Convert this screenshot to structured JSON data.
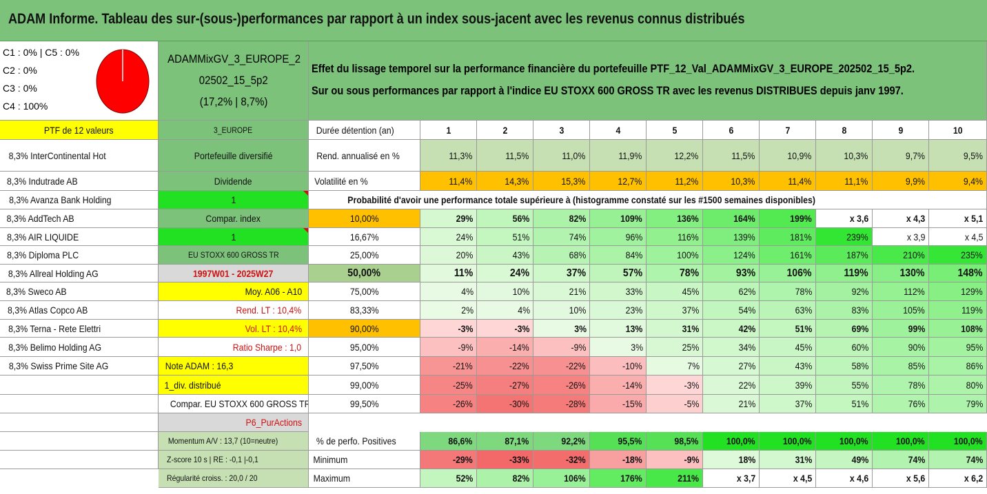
{
  "title": "ADAM Informe. Tableau des sur-(sous-)performances par rapport à un index sous-jacent avec les revenus connus distribués",
  "composition": {
    "line1": "C1 : 0% | C5 : 0%",
    "line2": "C2 : 0%",
    "line3": "C3 : 0%",
    "line4": "C4 : 100%"
  },
  "pie_color": "#ff0000",
  "portfolio": {
    "name_l1": "ADAMMixGV_3_EUROPE_2",
    "name_l2": "02502_15_5p2",
    "name_l3": "(17,2% | 8,7%)"
  },
  "description": {
    "line1": "Effet du lissage temporel sur la performance financière du portefeuille PTF_12_Val_ADAMMixGV_3_EUROPE_202502_15_5p2.",
    "line2": "Sur ou sous performances par rapport à l'indice EU STOXX 600 GROSS TR avec les revenus DISTRIBUES depuis janv 1997."
  },
  "ptf_label": "PTF de 12 valeurs",
  "holdings": [
    "8,3% InterContinental Hot",
    "8,3% Indutrade AB",
    "8,3% Avanza Bank Holding",
    "8,3% AddTech AB",
    "8,3% AIR LIQUIDE",
    "8,3% Diploma PLC",
    "8,3% Allreal Holding AG",
    "8,3% Sweco AB",
    "8,3% Atlas Copco AB",
    "8,3% Terna - Rete Elettri",
    "8,3% Belimo Holding AG",
    "8,3% Swiss Prime Site AG"
  ],
  "col2": {
    "zone": "3_EUROPE",
    "type": "Portefeuille diversifié",
    "dividend_label": "Dividende",
    "dividend_value": "1",
    "compar_label": "Compar. index",
    "compar_value": "1",
    "index_name": "EU STOXX 600 GROSS TR",
    "period": "1997W01 - 2025W27",
    "moy": "Moy. A06 - A10",
    "rend_lt": "Rend. LT : 10,4%",
    "vol_lt": "Vol. LT : 10,4%",
    "sharpe": "Ratio Sharpe : 1,0",
    "note": "Note ADAM : 16,3",
    "div": "1_div. distribué",
    "compar_full": "Compar. EU STOXX 600 GROSS TR",
    "p6": "P6_PurActions",
    "momentum": "Momentum A/V : 13,7 (10=neutre)",
    "zscore": "Z-score 10 s | RE : -0,1 |-0,1",
    "regularite": "Régularité croiss. : 20,0 / 20"
  },
  "duration": {
    "label": "Durée détention (an)",
    "years": [
      "1",
      "2",
      "3",
      "4",
      "5",
      "6",
      "7",
      "8",
      "9",
      "10"
    ]
  },
  "rend": {
    "label": "Rend. annualisé en %",
    "values": [
      "11,3%",
      "11,5%",
      "11,0%",
      "11,9%",
      "12,2%",
      "11,5%",
      "10,9%",
      "10,3%",
      "9,7%",
      "9,5%"
    ]
  },
  "vol": {
    "label": "Volatilité en %",
    "values": [
      "11,4%",
      "14,3%",
      "15,3%",
      "12,7%",
      "11,2%",
      "10,3%",
      "11,4%",
      "11,1%",
      "9,9%",
      "9,4%"
    ]
  },
  "prob_header": "Probabilité d'avoir une performance totale supérieure à (histogramme constaté sur les #1500 semaines disponibles)",
  "prob_rows": [
    {
      "p": "10,00%",
      "v": [
        "29%",
        "56%",
        "82%",
        "109%",
        "136%",
        "164%",
        "199%",
        "x 3,6",
        "x 4,3",
        "x 5,1"
      ]
    },
    {
      "p": "16,67%",
      "v": [
        "24%",
        "51%",
        "74%",
        "96%",
        "116%",
        "139%",
        "181%",
        "239%",
        "x 3,9",
        "x 4,5"
      ]
    },
    {
      "p": "25,00%",
      "v": [
        "20%",
        "43%",
        "68%",
        "84%",
        "100%",
        "124%",
        "161%",
        "187%",
        "210%",
        "235%"
      ]
    },
    {
      "p": "50,00%",
      "v": [
        "11%",
        "24%",
        "37%",
        "57%",
        "78%",
        "93%",
        "106%",
        "119%",
        "130%",
        "148%"
      ]
    },
    {
      "p": "75,00%",
      "v": [
        "4%",
        "10%",
        "21%",
        "33%",
        "45%",
        "62%",
        "78%",
        "92%",
        "112%",
        "129%"
      ]
    },
    {
      "p": "83,33%",
      "v": [
        "2%",
        "4%",
        "10%",
        "23%",
        "37%",
        "54%",
        "63%",
        "83%",
        "105%",
        "119%"
      ]
    },
    {
      "p": "90,00%",
      "v": [
        "-3%",
        "-3%",
        "3%",
        "13%",
        "31%",
        "42%",
        "51%",
        "69%",
        "99%",
        "108%"
      ]
    },
    {
      "p": "95,00%",
      "v": [
        "-9%",
        "-14%",
        "-9%",
        "3%",
        "25%",
        "34%",
        "45%",
        "60%",
        "90%",
        "95%"
      ]
    },
    {
      "p": "97,50%",
      "v": [
        "-21%",
        "-22%",
        "-22%",
        "-10%",
        "7%",
        "27%",
        "43%",
        "58%",
        "85%",
        "86%"
      ]
    },
    {
      "p": "99,00%",
      "v": [
        "-25%",
        "-27%",
        "-26%",
        "-14%",
        "-3%",
        "22%",
        "39%",
        "55%",
        "78%",
        "80%"
      ]
    },
    {
      "p": "99,50%",
      "v": [
        "-26%",
        "-30%",
        "-28%",
        "-15%",
        "-5%",
        "21%",
        "37%",
        "51%",
        "76%",
        "79%"
      ]
    }
  ],
  "positives": {
    "label": "% de perfo. Positives",
    "values": [
      "86,6%",
      "87,1%",
      "92,2%",
      "95,5%",
      "98,5%",
      "100,0%",
      "100,0%",
      "100,0%",
      "100,0%",
      "100,0%"
    ]
  },
  "minimum": {
    "label": "Minimum",
    "values": [
      "-29%",
      "-33%",
      "-32%",
      "-18%",
      "-9%",
      "18%",
      "31%",
      "49%",
      "74%",
      "74%"
    ]
  },
  "maximum": {
    "label": "Maximum",
    "values": [
      "52%",
      "82%",
      "106%",
      "176%",
      "211%",
      "x 3,7",
      "x 4,5",
      "x 4,6",
      "x 5,6",
      "x 6,2"
    ]
  }
}
